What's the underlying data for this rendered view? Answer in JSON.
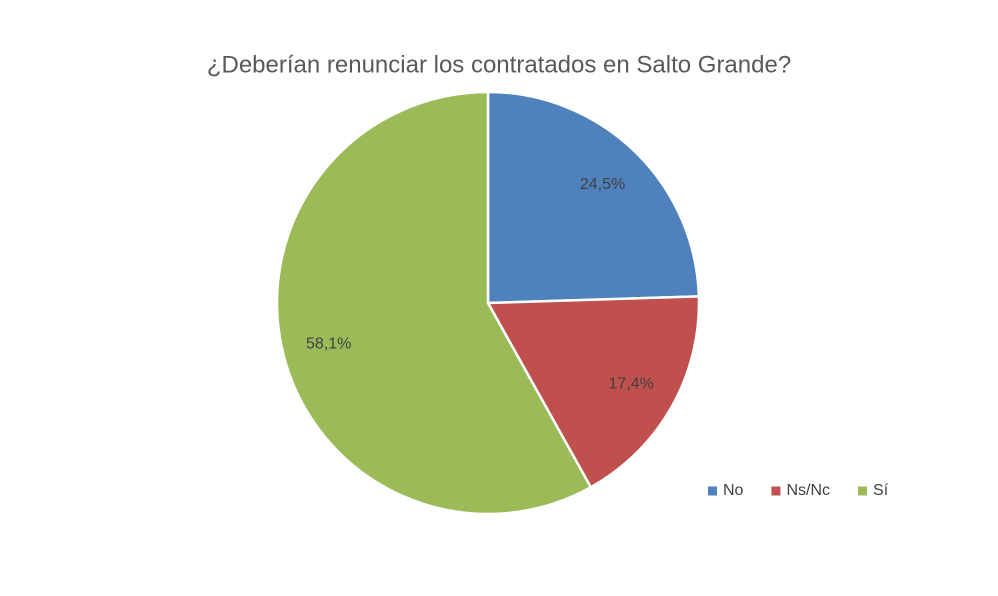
{
  "chart_data": {
    "type": "pie",
    "title": "¿Deberían renunciar los contratados en Salto Grande?",
    "categories": [
      "No",
      "Ns/Nc",
      "Sí"
    ],
    "values": [
      24.5,
      17.4,
      58.1
    ],
    "value_labels": [
      "24,5%",
      "17,4%",
      "58,1%"
    ],
    "colors": [
      "#4f81bd",
      "#c0504d",
      "#9bbb59"
    ],
    "legend": "bottom-right"
  }
}
